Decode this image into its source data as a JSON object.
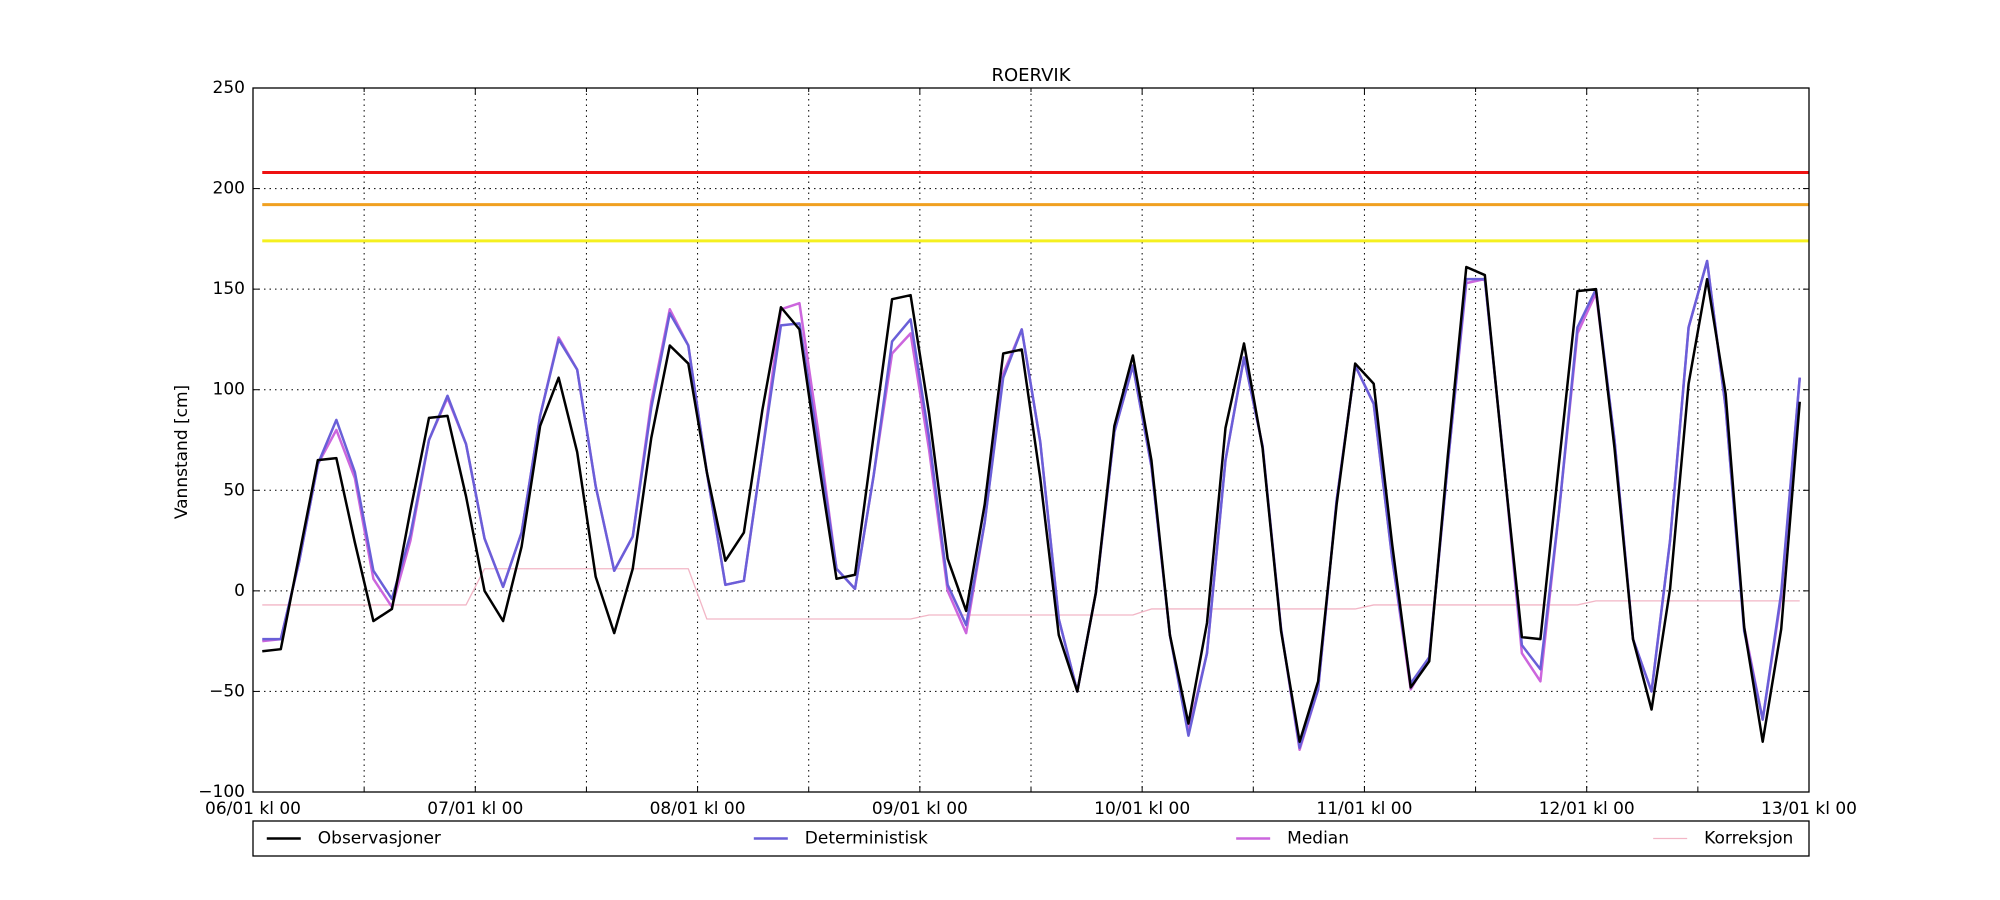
{
  "chart_data": {
    "type": "line",
    "title": "ROERVIK",
    "y_label": "Vannstand [cm]",
    "x": [
      1,
      3,
      5,
      7,
      9,
      11,
      13,
      15,
      17,
      19,
      21,
      23,
      25,
      27,
      29,
      31,
      33,
      35,
      37,
      39,
      41,
      43,
      45,
      47,
      49,
      51,
      53,
      55,
      57,
      59,
      61,
      63,
      65,
      67,
      69,
      71,
      73,
      75,
      77,
      79,
      81,
      83,
      85,
      87,
      89,
      91,
      93,
      95,
      97,
      99,
      101,
      103,
      105,
      107,
      109,
      111,
      113,
      115,
      117,
      119,
      121,
      123,
      125,
      127,
      129,
      131,
      133,
      135,
      137,
      139,
      141,
      143,
      145,
      147,
      149,
      151,
      153,
      155,
      157,
      159,
      161,
      163,
      165,
      167
    ],
    "xlim": [
      0,
      168
    ],
    "xticks": [
      {
        "value": 0,
        "label": "06/01 kl 00"
      },
      {
        "value": 24,
        "label": "07/01 kl 00"
      },
      {
        "value": 48,
        "label": "08/01 kl 00"
      },
      {
        "value": 72,
        "label": "09/01 kl 00"
      },
      {
        "value": 96,
        "label": "10/01 kl 00"
      },
      {
        "value": 120,
        "label": "11/01 kl 00"
      },
      {
        "value": 144,
        "label": "12/01 kl 00"
      },
      {
        "value": 168,
        "label": "13/01 kl 00"
      }
    ],
    "xminorticks": [
      12,
      36,
      60,
      84,
      108,
      132,
      156
    ],
    "ylim": [
      -100,
      250
    ],
    "yticks": [
      {
        "value": -100,
        "label": "−100"
      },
      {
        "value": -50,
        "label": "−50"
      },
      0,
      50,
      100,
      150,
      200,
      250
    ],
    "grid": true,
    "legend": "bottom",
    "hlines": [
      {
        "value": 208,
        "color": "#ee1111"
      },
      {
        "value": 192,
        "color": "#f0a020"
      },
      {
        "value": 174,
        "color": "#f5f020"
      }
    ],
    "series": [
      {
        "name": "Observasjoner",
        "color": "#000000",
        "width": 2.5,
        "values": [
          -30,
          -29,
          18,
          65,
          66,
          24,
          -15,
          -9,
          40,
          86,
          87,
          47,
          0,
          -15,
          22,
          82,
          106,
          69,
          7,
          -21,
          11,
          76,
          122,
          113,
          59,
          15,
          29,
          90,
          141,
          130,
          66,
          6,
          8,
          77,
          145,
          147,
          88,
          16,
          -10,
          43,
          118,
          120,
          56,
          -22,
          -50,
          -1,
          82,
          117,
          65,
          -22,
          -66,
          -16,
          81,
          123,
          71,
          -20,
          -75,
          -45,
          43,
          113,
          103,
          23,
          -48,
          -35,
          67,
          161,
          157,
          65,
          -23,
          -24,
          63,
          149,
          150,
          71,
          -24,
          -59,
          1,
          103,
          155,
          98,
          -18,
          -75,
          -19,
          94
        ]
      },
      {
        "name": "Deterministisk",
        "color": "#6a5fd8",
        "width": 2.5,
        "values": [
          -24,
          -24,
          15,
          63,
          85,
          59,
          10,
          -4,
          28,
          75,
          97,
          73,
          26,
          2,
          29,
          87,
          125,
          110,
          52,
          10,
          27,
          91,
          138,
          122,
          59,
          3,
          5,
          69,
          132,
          133,
          74,
          11,
          1,
          57,
          124,
          135,
          76,
          3,
          -17,
          34,
          106,
          130,
          74,
          -14,
          -50,
          -1,
          79,
          112,
          62,
          -22,
          -72,
          -31,
          65,
          116,
          72,
          -19,
          -78,
          -49,
          45,
          112,
          93,
          16,
          -46,
          -33,
          63,
          155,
          155,
          66,
          -27,
          -39,
          39,
          131,
          150,
          75,
          -24,
          -50,
          25,
          131,
          164,
          91,
          -20,
          -64,
          -1,
          106
        ]
      },
      {
        "name": "Median",
        "color": "#cc66dd",
        "width": 2.5,
        "values": [
          -25,
          -24,
          15,
          63,
          80,
          56,
          6,
          -8,
          25,
          75,
          96,
          73,
          26,
          2,
          29,
          87,
          126,
          110,
          52,
          10,
          27,
          94,
          140,
          122,
          59,
          3,
          5,
          69,
          140,
          143,
          80,
          11,
          1,
          57,
          118,
          128,
          70,
          0,
          -21,
          34,
          108,
          130,
          74,
          -14,
          -50,
          -1,
          79,
          112,
          62,
          -22,
          -70,
          -31,
          65,
          116,
          72,
          -19,
          -79,
          -49,
          45,
          112,
          93,
          16,
          -49,
          -33,
          63,
          153,
          155,
          66,
          -31,
          -45,
          39,
          128,
          148,
          75,
          -24,
          -50,
          25,
          131,
          164,
          91,
          -18,
          -64,
          -3,
          106
        ]
      },
      {
        "name": "Korreksjon",
        "color": "#f2b6c6",
        "width": 1.3,
        "values": [
          -7,
          -7,
          -7,
          -7,
          -7,
          -7,
          -7,
          -7,
          -7,
          -7,
          -7,
          -7,
          11,
          11,
          11,
          11,
          11,
          11,
          11,
          11,
          11,
          11,
          11,
          11,
          -14,
          -14,
          -14,
          -14,
          -14,
          -14,
          -14,
          -14,
          -14,
          -14,
          -14,
          -14,
          -12,
          -12,
          -12,
          -12,
          -12,
          -12,
          -12,
          -12,
          -12,
          -12,
          -12,
          -12,
          -9,
          -9,
          -9,
          -9,
          -9,
          -9,
          -9,
          -9,
          -9,
          -9,
          -9,
          -9,
          -7,
          -7,
          -7,
          -7,
          -7,
          -7,
          -7,
          -7,
          -7,
          -7,
          -7,
          -7,
          -5,
          -5,
          -5,
          -5,
          -5,
          -5,
          -5,
          -5,
          -5,
          -5,
          -5,
          -5
        ]
      }
    ]
  }
}
